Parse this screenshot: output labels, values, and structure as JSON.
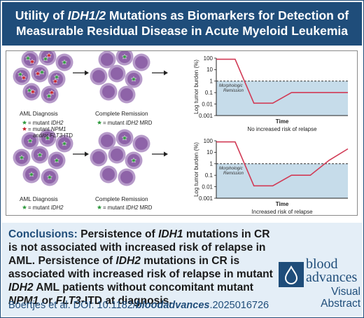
{
  "header": {
    "line1_pre": "Utility of ",
    "line1_italic": "IDH1/2",
    "line1_post": " Mutations as Biomarkers for Detection of",
    "line2": "Measurable Residual Disease in Acute Myeloid Leukemia"
  },
  "top_row": {
    "diagnosis_label": "AML Diagnosis",
    "diagnosis_legend_1_pre": "= mutant ",
    "diagnosis_legend_1_italic": "IDH2",
    "diagnosis_legend_2_pre": "= mutant ",
    "diagnosis_legend_2_italic": "NPM1",
    "diagnosis_legend_3_pre": "and/or ",
    "diagnosis_legend_3_italic": "FLT3",
    "diagnosis_legend_3_post": "-ITD",
    "remission_label": "Complete Remission",
    "remission_legend_pre": "= mutant ",
    "remission_legend_italic": "IDH2",
    "remission_legend_post": " MRD",
    "chart_caption": "No increased risk of relapse"
  },
  "bottom_row": {
    "diagnosis_label": "AML Diagnosis",
    "diagnosis_legend_pre": "= mutant ",
    "diagnosis_legend_italic": "IDH2",
    "remission_label": "Complete Remission",
    "remission_legend_pre": "= mutant ",
    "remission_legend_italic": "IDH2",
    "remission_legend_post": " MRD",
    "chart_caption": "Increased risk of relapse"
  },
  "chart_data": [
    {
      "type": "line",
      "ylabel": "Log tumor burden (%)",
      "xlabel": "Time",
      "yscale": "log",
      "yticks": [
        "100",
        "10",
        "1",
        "0.1",
        "0.01",
        "0.001"
      ],
      "ylim": [
        0.001,
        100
      ],
      "threshold": 1,
      "threshold_label_1": "Morphologic",
      "threshold_label_2": "Remission",
      "x": [
        0,
        1,
        2,
        3,
        4,
        5,
        6,
        7
      ],
      "values": [
        80,
        80,
        0.012,
        0.012,
        0.1,
        0.1,
        0.1,
        0.1
      ],
      "series_color": "#d13a55",
      "caption": "No increased risk of relapse"
    },
    {
      "type": "line",
      "ylabel": "Log tumor burden (%)",
      "xlabel": "Time",
      "yscale": "log",
      "yticks": [
        "100",
        "10",
        "1",
        "0.1",
        "0.01",
        "0.001"
      ],
      "ylim": [
        0.001,
        100
      ],
      "threshold": 1,
      "threshold_label_1": "Morphologic",
      "threshold_label_2": "Remission",
      "x": [
        0,
        1,
        2,
        3,
        4,
        5,
        6,
        7
      ],
      "values": [
        80,
        80,
        0.012,
        0.012,
        0.1,
        0.1,
        2,
        20
      ],
      "series_color": "#d13a55",
      "caption": "Increased risk of relapse"
    }
  ],
  "conclusions": {
    "heading": "Conclusions: ",
    "t1": "Persistence of ",
    "t1_italic": "IDH1",
    "t2": " mutations in CR is not associated with increased risk of relapse in AML. Persistence of ",
    "t2_italic": "IDH2",
    "t3": " mutations in CR is associated with increased risk of relapse in mutant ",
    "t3_italic": "IDH2",
    "t4": " AML patients without concomitant mutant ",
    "t4_italic": "NPM1",
    "t5": " or ",
    "t5_italic": "FLT3",
    "t6": "-ITD at diagnosis."
  },
  "citation": {
    "pre": "Boertjes et al. DOI: 10.1182/",
    "italic": "bloodadvances",
    "post": ".2025016726"
  },
  "branding": {
    "word1": "blood",
    "word2": "advances",
    "word3": "Visual",
    "word4": "Abstract"
  },
  "colors": {
    "header_bg": "#1f4d7a",
    "cell_fill": "#b69ac9",
    "cell_nucleus": "#8e63a8",
    "star_green": "#2f9a3e",
    "star_red": "#c8232c",
    "remission_fill": "#c6dcea",
    "conclusion_bg": "#e4eef7"
  }
}
